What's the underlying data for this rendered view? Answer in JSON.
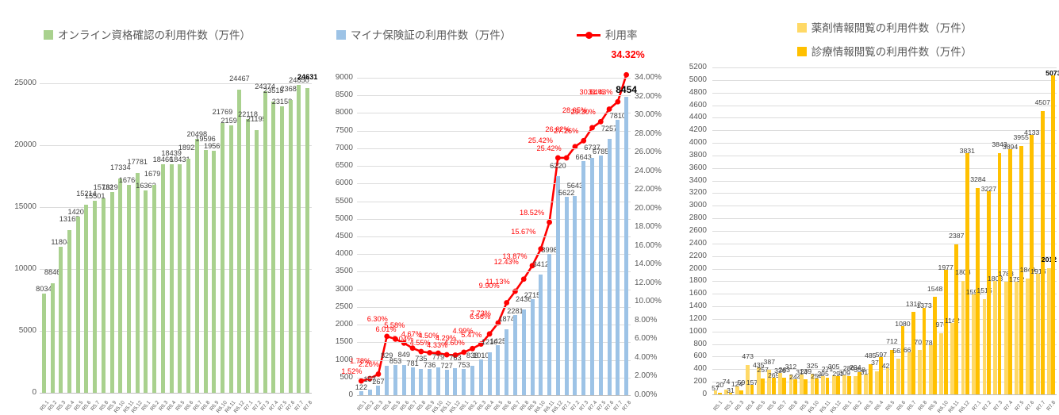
{
  "page": {
    "background": "#FFFFFF"
  },
  "chart_data": [
    {
      "id": "online-eligibility",
      "type": "bar",
      "title": "オンライン資格確認の利用件数（万件）",
      "bar_color": "#A9D18E",
      "ylim": [
        0,
        25000
      ],
      "ystep": 5000,
      "grid": true,
      "legend_position": "top",
      "categories": [
        "R5.1",
        "R5.2",
        "R5.3",
        "R5.4",
        "R5.5",
        "R5.6",
        "R5.7",
        "R5.8",
        "R5.9",
        "R5.10",
        "R5.11",
        "R5.12",
        "R6.1",
        "R6.2",
        "R6.3",
        "R6.4",
        "R6.5",
        "R6.6",
        "R6.7",
        "R6.8",
        "R6.9",
        "R6.10",
        "R6.11",
        "R6.12",
        "R7.1",
        "R7.2",
        "R7.3",
        "R7.4",
        "R7.5",
        "R7.6",
        "R7.7",
        "R7.8"
      ],
      "values": [
        8034,
        8846,
        11804,
        13165,
        14200,
        15214,
        15501,
        15732,
        16198,
        17334,
        16766,
        17781,
        16363,
        16791,
        18466,
        18439,
        18431,
        18922,
        20498,
        19596,
        19569,
        21769,
        21590,
        24467,
        22118,
        21195,
        24374,
        23515,
        23158,
        23683,
        24850,
        24631
      ]
    },
    {
      "id": "myna-insurance",
      "type": "bar+line",
      "ylim_left": [
        0,
        9000
      ],
      "ystep_left": 500,
      "ylim_right_percent": [
        0,
        34
      ],
      "ystep_right_percent": 2,
      "grid": true,
      "legend_position": "top",
      "categories": [
        "R5.1",
        "R5.2",
        "R5.3",
        "R5.4",
        "R5.5",
        "R5.6",
        "R5.7",
        "R5.8",
        "R5.9",
        "R5.10",
        "R5.11",
        "R5.12",
        "R6.1",
        "R6.2",
        "R6.3",
        "R6.4",
        "R6.5",
        "R6.6",
        "R6.7",
        "R6.8",
        "R6.9",
        "R6.10",
        "R6.11",
        "R6.12",
        "R7.1",
        "R7.2",
        "R7.3",
        "R7.4",
        "R7.5",
        "R7.6",
        "R7.7",
        "R7.8"
      ],
      "series": [
        {
          "name": "マイナ保険証の利用件数（万件）",
          "type": "bar",
          "color": "#9DC3E6",
          "axis": "left",
          "values": [
            122,
            157,
            267,
            829,
            853,
            849,
            781,
            735,
            736,
            779,
            727,
            763,
            753,
            838,
            1010,
            1210,
            1425,
            1874,
            2281,
            2436,
            2715,
            3412,
            3998,
            6220,
            5622,
            5643,
            6643,
            6737,
            6785,
            7257,
            7810,
            8454
          ]
        },
        {
          "name": "利用率",
          "type": "line",
          "color": "#FF0000",
          "axis": "right",
          "unit": "%",
          "values": [
            1.52,
            1.78,
            2.26,
            6.3,
            6.01,
            5.58,
            5.04,
            4.67,
            4.55,
            4.5,
            4.33,
            4.29,
            4.6,
            4.99,
            5.47,
            6.56,
            7.73,
            9.9,
            11.13,
            12.43,
            13.87,
            15.67,
            18.52,
            25.42,
            25.42,
            26.62,
            27.26,
            28.65,
            29.3,
            30.64,
            31.43,
            34.32
          ]
        }
      ]
    },
    {
      "id": "info-viewing",
      "type": "bar",
      "ylim": [
        0,
        5200
      ],
      "ystep": 200,
      "grid": true,
      "legend_position": "top",
      "categories": [
        "R5.1",
        "R5.2",
        "R5.3",
        "R5.4",
        "R5.5",
        "R5.6",
        "R5.7",
        "R5.8",
        "R5.9",
        "R5.10",
        "R5.11",
        "R5.12",
        "R6.1",
        "R6.2",
        "R6.3",
        "R6.4",
        "R6.5",
        "R6.6",
        "R6.7",
        "R6.8",
        "R6.9",
        "R6.10",
        "R6.11",
        "R6.12",
        "R7.1",
        "R7.2",
        "R7.3",
        "R7.4",
        "R7.5",
        "R7.6",
        "R7.7",
        "R7.8"
      ],
      "series": [
        {
          "name": "薬剤情報閲覧の利用件数（万件）",
          "type": "bar",
          "color": "#FFD966",
          "values": [
            57,
            74,
            124,
            473,
            435,
            387,
            336,
            312,
            314,
            325,
            295,
            305,
            309,
            294,
            313,
            371,
            421,
            562,
            666,
            701,
            784,
            976,
            1142,
            1808,
            1591,
            1515,
            1803,
            1788,
            1792,
            1849,
            1916,
            2012
          ]
        },
        {
          "name": "診療情報閲覧の利用件数（万件）",
          "type": "bar",
          "color": "#FFC000",
          "values": [
            20,
            31,
            59,
            157,
            257,
            269,
            263,
            244,
            239,
            254,
            271,
            291,
            286,
            358,
            485,
            597,
            712,
            1080,
            1312,
            1373,
            1548,
            1977,
            2387,
            3831,
            3284,
            3227,
            3843,
            3894,
            3955,
            4133,
            4507,
            5073
          ]
        }
      ]
    }
  ]
}
